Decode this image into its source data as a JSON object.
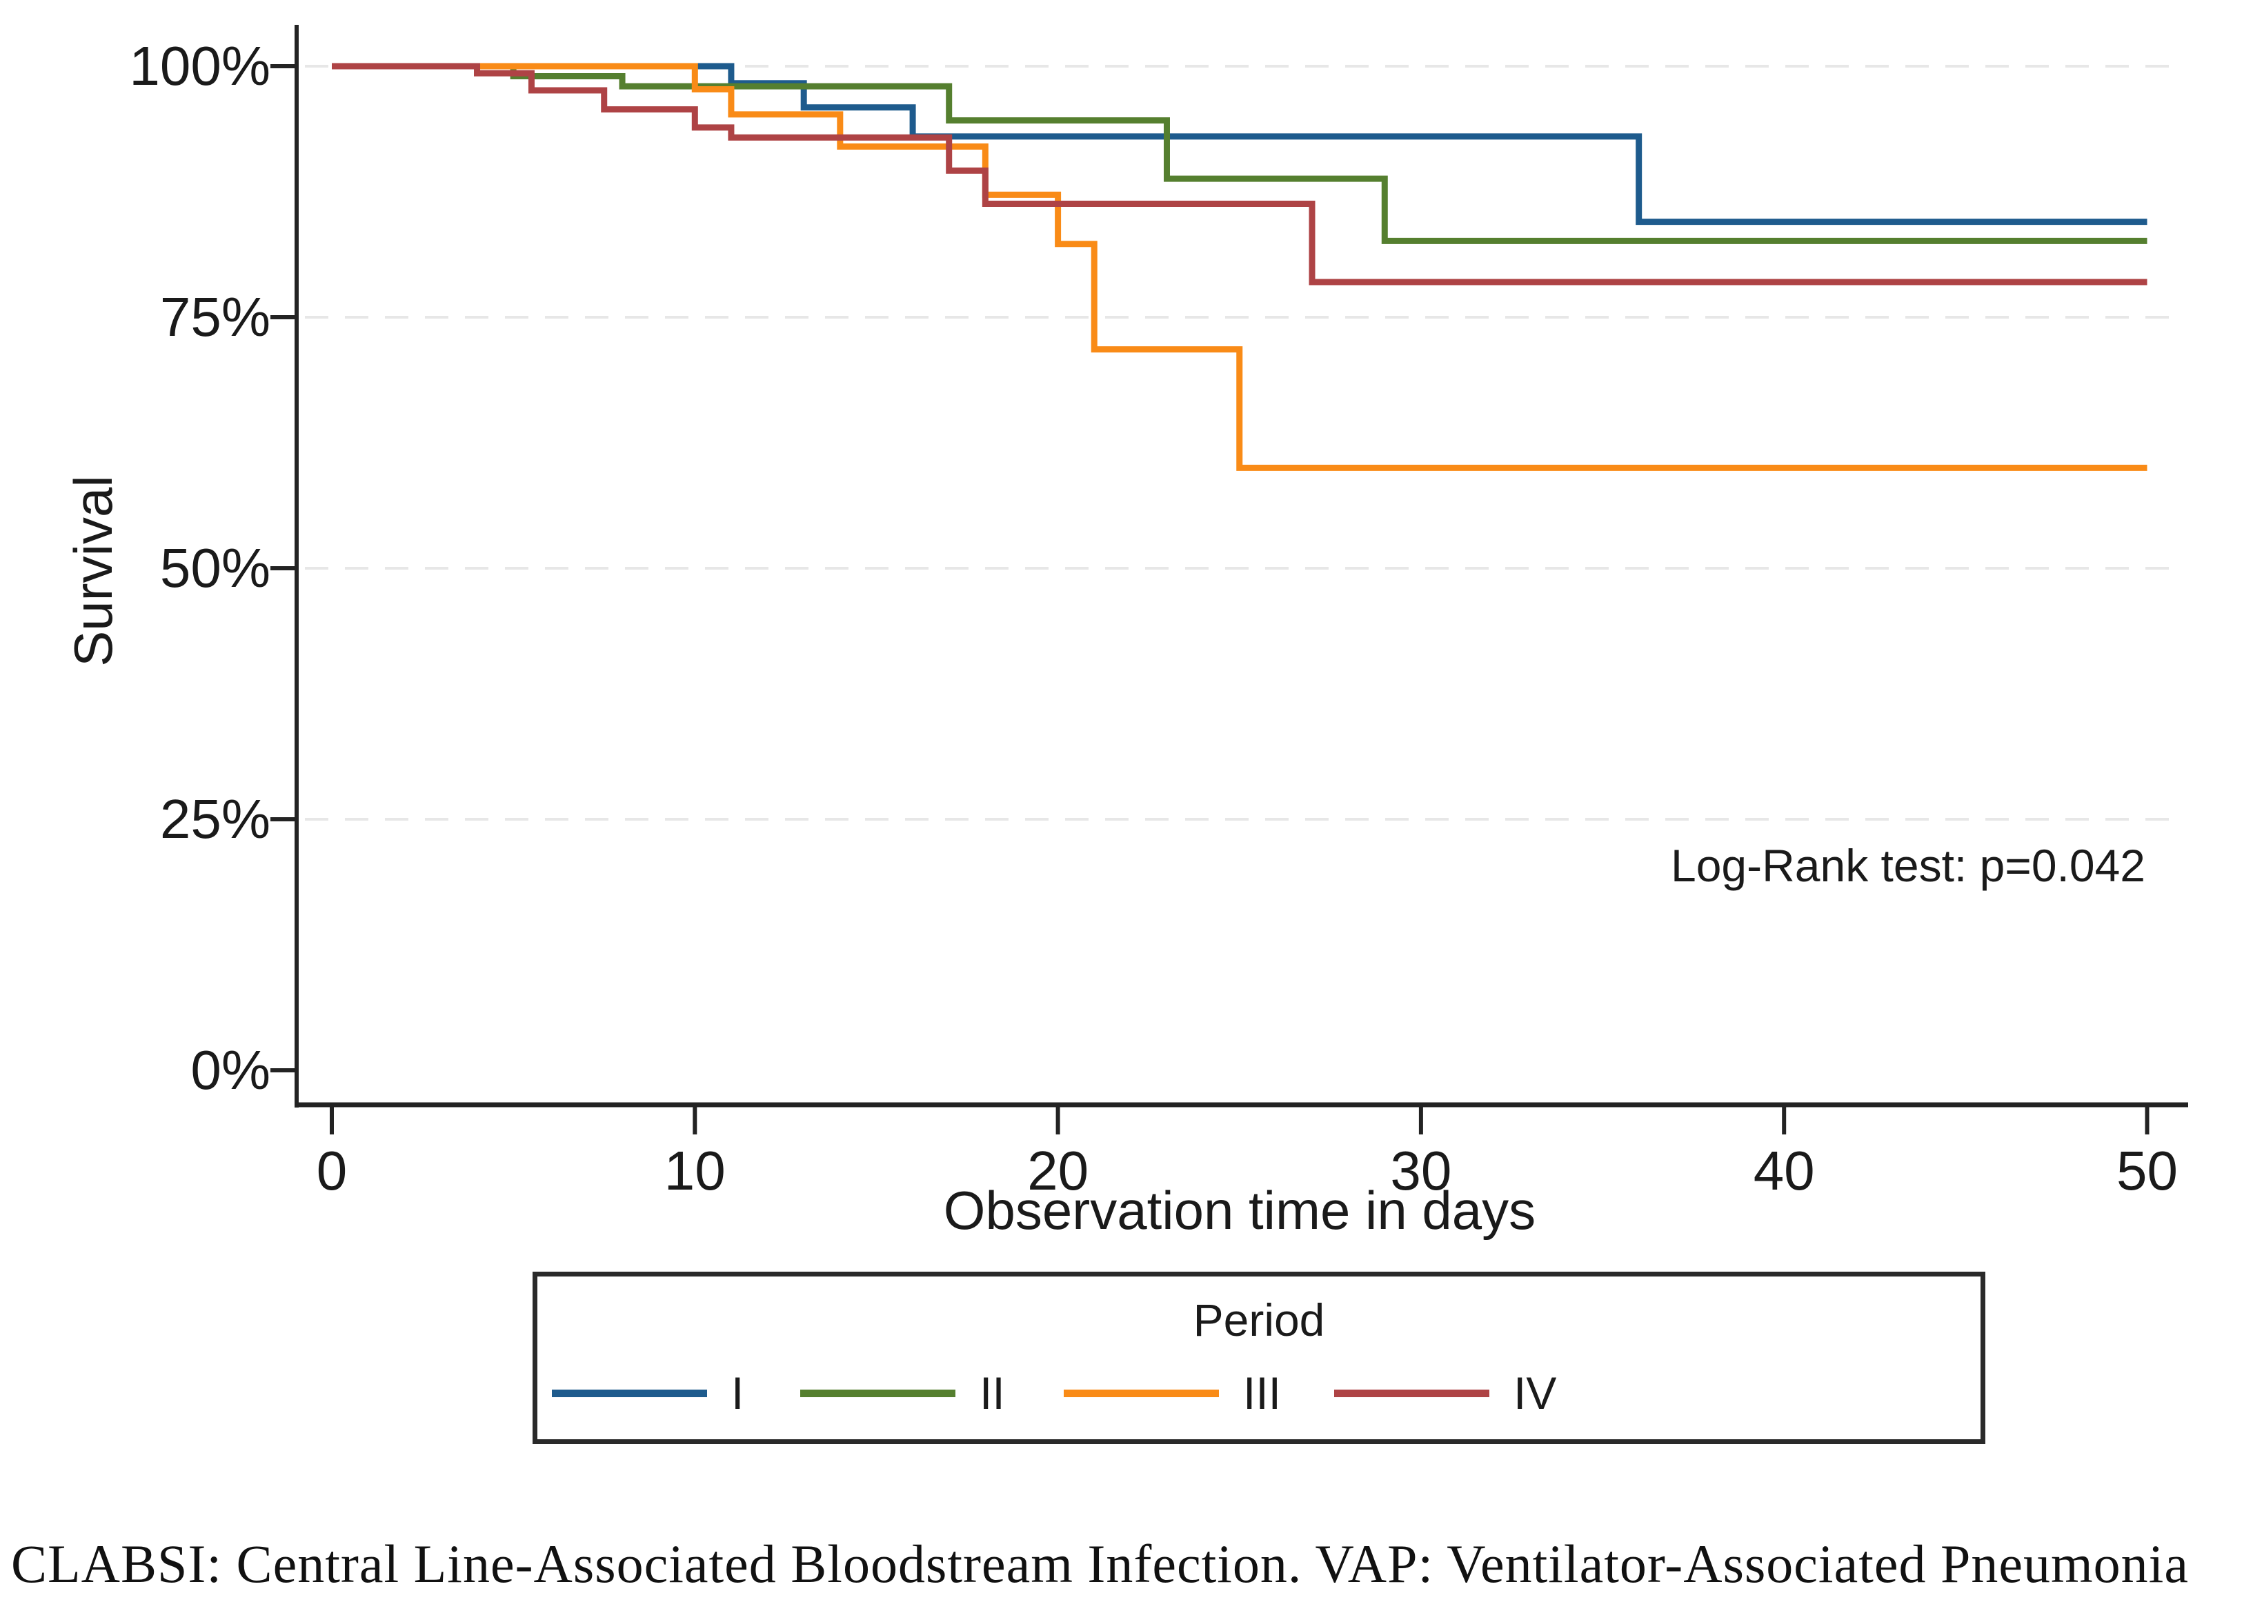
{
  "caption": {
    "text": "CLABSI: Central Line-Associated Bloodstream Infection. VAP: Ventilator-Associated Pneumonia"
  },
  "chart_data": {
    "type": "line",
    "subtype": "kaplan-meier-step-function",
    "title": "",
    "xlabel": "Observation time in days",
    "ylabel": "Survival",
    "annotation": "Log-Rank test: p=0.042",
    "xlim": [
      0,
      50
    ],
    "ylim": [
      0,
      100
    ],
    "grid": "horizontal-dashed-light-gray",
    "x_ticks": [
      {
        "value": 0,
        "label": "0"
      },
      {
        "value": 10,
        "label": "10"
      },
      {
        "value": 20,
        "label": "20"
      },
      {
        "value": 30,
        "label": "30"
      },
      {
        "value": 40,
        "label": "40"
      },
      {
        "value": 50,
        "label": "50"
      }
    ],
    "y_ticks": [
      {
        "value": 0,
        "label": "0%",
        "grid": false
      },
      {
        "value": 25,
        "label": "25%",
        "grid": true
      },
      {
        "value": 50,
        "label": "50%",
        "grid": true
      },
      {
        "value": 75,
        "label": "75%",
        "grid": true
      },
      {
        "value": 100,
        "label": "100%",
        "grid": true
      }
    ],
    "legend": {
      "title": "Period",
      "position": "bottom-boxed",
      "entries": [
        {
          "label": "I",
          "color": "#1e5b8d"
        },
        {
          "label": "II",
          "color": "#557f2f"
        },
        {
          "label": "III",
          "color": "#f98b17"
        },
        {
          "label": "IV",
          "color": "#ae4345"
        }
      ]
    },
    "series": [
      {
        "name": "Period I",
        "label": "I",
        "color": "#1e5b8d",
        "event_times": [
          0,
          11,
          13,
          16,
          36
        ],
        "survival_pct": [
          100,
          98.3,
          95.9,
          93.0,
          84.5
        ],
        "end_time": 50
      },
      {
        "name": "Period II",
        "label": "II",
        "color": "#557f2f",
        "event_times": [
          0,
          5,
          8,
          17,
          23,
          29
        ],
        "survival_pct": [
          100,
          99.0,
          98.0,
          94.6,
          88.8,
          82.6
        ],
        "end_time": 50
      },
      {
        "name": "Period III",
        "label": "III",
        "color": "#f98b17",
        "event_times": [
          0,
          10,
          11,
          14,
          18,
          20,
          21,
          25
        ],
        "survival_pct": [
          100,
          97.7,
          95.2,
          92.0,
          87.2,
          82.3,
          71.8,
          60.0
        ],
        "end_time": 50
      },
      {
        "name": "Period IV",
        "label": "IV",
        "color": "#ae4345",
        "event_times": [
          0,
          4,
          5.5,
          7.5,
          10,
          11,
          17,
          18,
          27
        ],
        "survival_pct": [
          100,
          99.3,
          97.6,
          95.7,
          93.9,
          92.9,
          89.6,
          86.3,
          78.5
        ],
        "end_time": 50
      }
    ]
  }
}
